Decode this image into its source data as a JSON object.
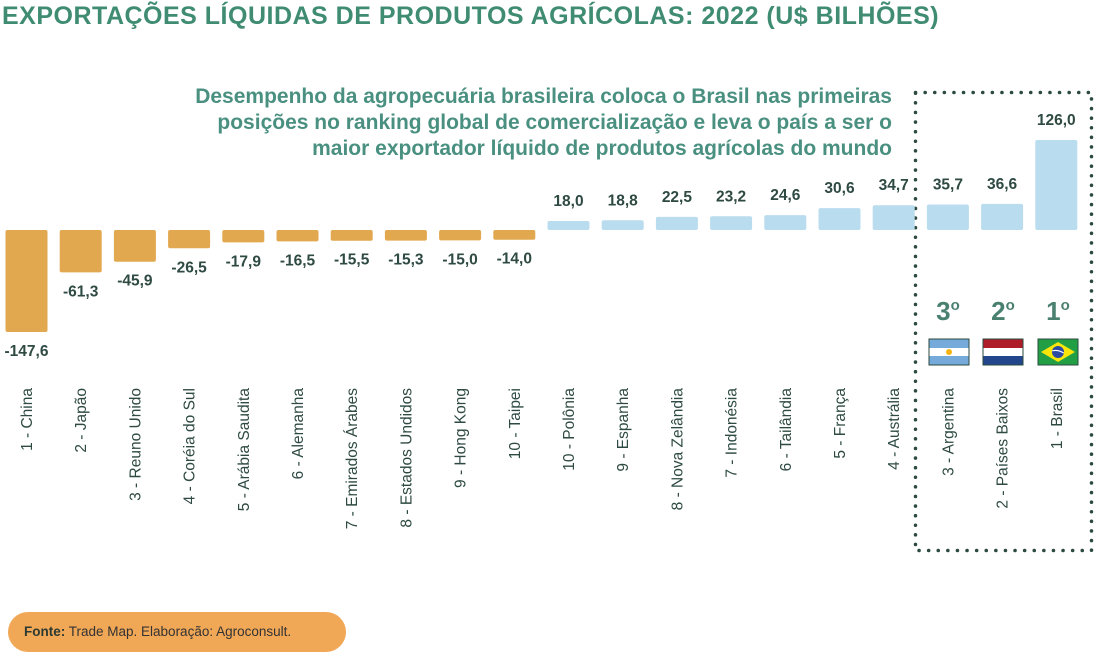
{
  "title": "EXPORTAÇÕES LÍQUIDAS DE PRODUTOS AGRÍCOLAS: 2022 (U$ BILHÕES)",
  "subtitle_lines": [
    "Desempenho da agropecuária brasileira coloca o Brasil nas primeiras",
    "posições no ranking global de comercialização e leva o país a ser o",
    "maior exportador líquido de produtos agrícolas do mundo"
  ],
  "source": {
    "label": "Fonte:",
    "text": " Trade Map. Elaboração: Agroconsult."
  },
  "colors": {
    "negative": "#e2a84f",
    "positive": "#b9dcef",
    "title": "#3f8c72",
    "text": "#2e4a42",
    "highlight_border": "#2d4a3f"
  },
  "ranks": [
    {
      "label": "3",
      "sup": "o",
      "flag": "argentina-flag"
    },
    {
      "label": "2",
      "sup": "o",
      "flag": "netherlands-flag"
    },
    {
      "label": "1",
      "sup": "o",
      "flag": "brazil-flag"
    }
  ],
  "chart_data": {
    "type": "bar",
    "title": "EXPORTAÇÕES LÍQUIDAS DE PRODUTOS AGRÍCOLAS: 2022 (U$ BILHÕES)",
    "categories": [
      "1 - China",
      "2 - Japão",
      "3 - Reuno Unido",
      "4 - Coréia do Sul",
      "5 - Arábia Saudita",
      "6 - Alemanha",
      "7 - Emirados Árabes",
      "8 - Estados Undidos",
      "9 - Hong Kong",
      "10 - Taipei",
      "10 - Polônia",
      "9 - Espanha",
      "8 - Nova Zelândia",
      "7 - Indonésia",
      "6 - Tailândia",
      "5 - França",
      "4 - Austrália",
      "3 - Argentina",
      "2 - Países Baixos",
      "1 - Brasil"
    ],
    "values": [
      -147.6,
      -61.3,
      -45.9,
      -26.5,
      -17.9,
      -16.5,
      -15.5,
      -15.3,
      -15.0,
      -14.0,
      18.0,
      18.8,
      22.5,
      23.2,
      24.6,
      30.6,
      34.7,
      35.7,
      36.6,
      126.0
    ],
    "value_labels": [
      "-147,6",
      "-61,3",
      "-45,9",
      "-26,5",
      "-17,9",
      "-16,5",
      "-15,5",
      "-15,3",
      "-15,0",
      "-14,0",
      "18,0",
      "18,8",
      "22,5",
      "23,2",
      "24,6",
      "30,6",
      "34,7",
      "35,7",
      "36,6",
      "126,0"
    ],
    "highlighted": [
      "3 - Argentina",
      "2 - Países Baixos",
      "1 - Brasil"
    ]
  }
}
